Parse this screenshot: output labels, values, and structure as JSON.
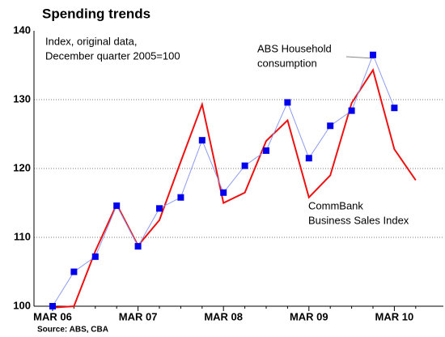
{
  "chart_data": {
    "type": "line",
    "title": "Spending trends",
    "source": "Source: ABS, CBA",
    "annotations": [
      {
        "lines": [
          "Index, original data,",
          "December quarter 2005=100"
        ]
      },
      {
        "lines": [
          "ABS Household",
          "consumption"
        ]
      },
      {
        "lines": [
          "CommBank",
          "Business Sales Index"
        ]
      }
    ],
    "categories": [
      "MAR 06",
      null,
      null,
      null,
      "MAR 07",
      null,
      null,
      null,
      "MAR 08",
      null,
      null,
      null,
      "MAR 09",
      null,
      null,
      null,
      "MAR 10",
      null
    ],
    "series": [
      {
        "name": "ABS Household consumption",
        "color": "#8c9cf0",
        "marker_color": "#0000ee",
        "values": [
          100,
          105.0,
          107.2,
          114.6,
          108.7,
          114.2,
          115.8,
          124.1,
          116.5,
          120.4,
          122.6,
          129.6,
          121.5,
          126.2,
          128.4,
          136.5,
          128.8,
          null
        ]
      },
      {
        "name": "CommBank Business Sales Index",
        "color": "#ee1111",
        "values": [
          99.8,
          100,
          108,
          114.8,
          108.8,
          112.5,
          121,
          129.3,
          115,
          116.5,
          124,
          127,
          115.8,
          119,
          129.5,
          134.3,
          122.8,
          118.3
        ]
      }
    ],
    "ylim": [
      100,
      140
    ],
    "yticks": [
      100,
      110,
      120,
      130,
      140
    ],
    "grid": true
  }
}
